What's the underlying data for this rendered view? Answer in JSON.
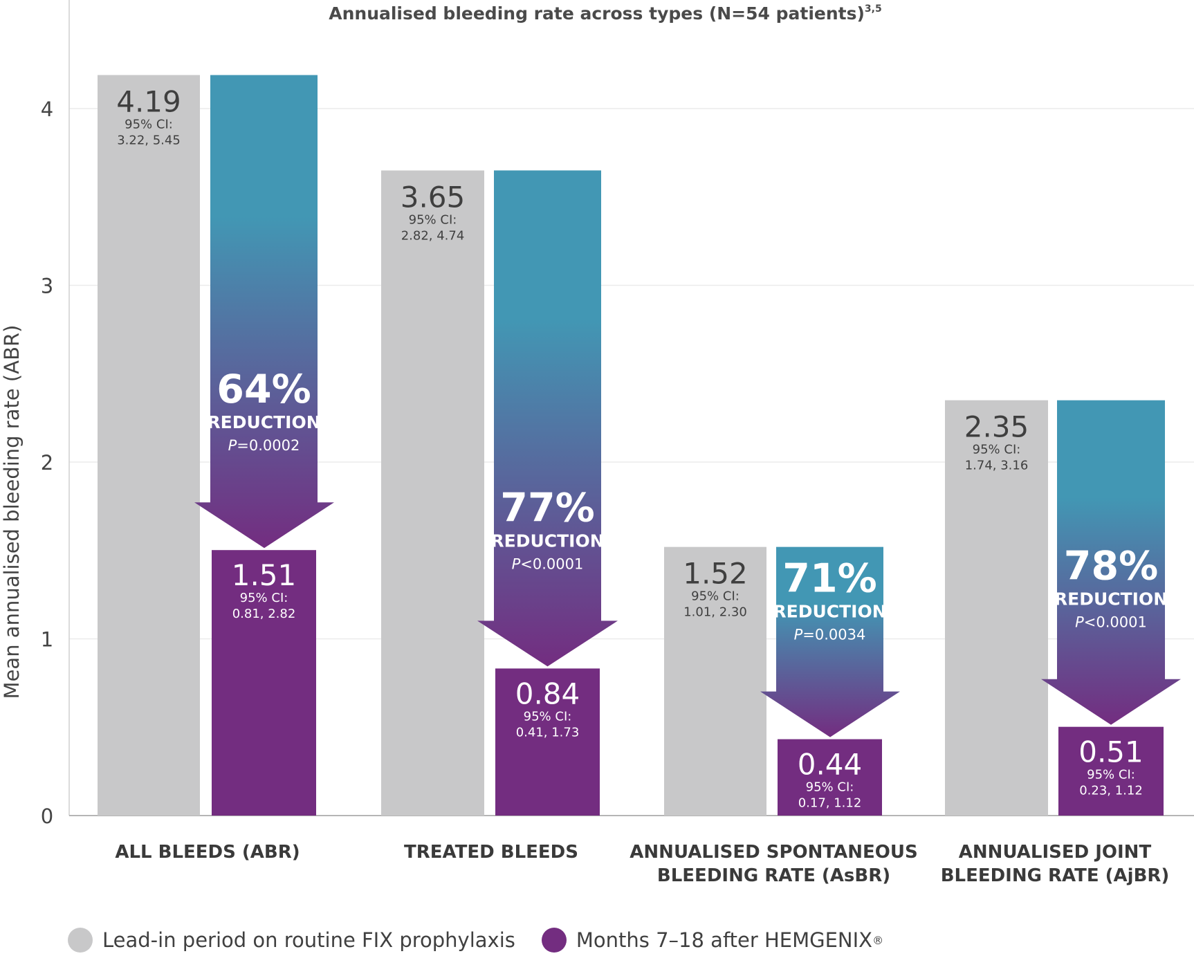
{
  "chart_data": {
    "type": "bar",
    "title": "Annualised bleeding rate across types (N=54 patients)",
    "title_superscript": "3,5",
    "ylabel": "Mean annualised bleeding rate (ABR)",
    "xlabel": "",
    "ylim": [
      0,
      4.5
    ],
    "yticks": [
      "0",
      "1",
      "2",
      "3",
      "4"
    ],
    "grid": true,
    "categories": [
      [
        "ALL BLEEDS (ABR)"
      ],
      [
        "TREATED BLEEDS"
      ],
      [
        "ANNUALISED SPONTANEOUS",
        "BLEEDING RATE (AsBR)"
      ],
      [
        "ANNUALISED JOINT",
        "BLEEDING RATE (AjBR)"
      ]
    ],
    "series": [
      {
        "name": "Lead-in period on routine FIX prophylaxis",
        "color": "#c8c8c9",
        "values": [
          4.19,
          3.65,
          1.52,
          2.35
        ],
        "labels": [
          "4.19",
          "3.65",
          "1.52",
          "2.35"
        ],
        "ci_labels": [
          "95% CI:",
          "95% CI:",
          "95% CI:",
          "95% CI:"
        ],
        "ci": [
          "3.22, 5.45",
          "2.82, 4.74",
          "1.01, 2.30",
          "1.74, 3.16"
        ]
      },
      {
        "name": "Months 7–18 after HEMGENIX®",
        "color": "#732d80",
        "values": [
          1.51,
          0.84,
          0.44,
          0.51
        ],
        "labels": [
          "1.51",
          "0.84",
          "0.44",
          "0.51"
        ],
        "ci_labels": [
          "95% CI:",
          "95% CI:",
          "95% CI:",
          "95% CI:"
        ],
        "ci": [
          "0.81, 2.82",
          "0.41, 1.73",
          "0.17, 1.12",
          "0.23, 1.12"
        ]
      }
    ],
    "reductions": [
      {
        "percent": "64%",
        "label": "REDUCTION",
        "p_symbol": "P",
        "p_value": "=0.0002"
      },
      {
        "percent": "77%",
        "label": "REDUCTION",
        "p_symbol": "P",
        "p_value": "<0.0001"
      },
      {
        "percent": "71%",
        "label": "REDUCTION",
        "p_symbol": "P",
        "p_value": "=0.0034"
      },
      {
        "percent": "78%",
        "label": "REDUCTION",
        "p_symbol": "P",
        "p_value": "<0.0001"
      }
    ],
    "arrow_colors": {
      "top": "#4297b4",
      "bottom": "#732d80"
    },
    "legend_position": "bottom-left"
  },
  "legend": {
    "lead_in_label": "Lead-in period on routine FIX prophylaxis",
    "hemgenix_label": "Months 7–18 after HEMGENIX",
    "hemgenix_mark": "®"
  }
}
